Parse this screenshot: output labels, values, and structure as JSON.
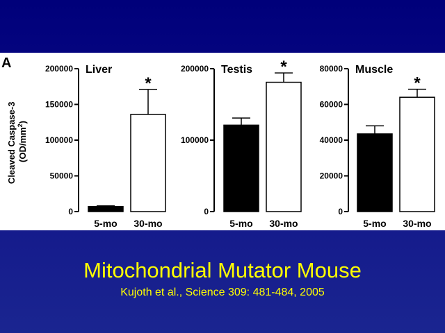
{
  "slide": {
    "title": "Mitochondrial Mutator Mouse",
    "citation": "Kujoth et al., Science 309: 481-484, 2005"
  },
  "figure": {
    "panel_label": "A",
    "ylabel_line1": "Cleaved Caspase-3",
    "ylabel_line2_prefix": "(OD/mm",
    "ylabel_line2_sup": "2",
    "ylabel_line2_suffix": ")"
  },
  "chart_data": [
    {
      "type": "bar",
      "title": "Liver",
      "categories": [
        "5-mo",
        "30-mo"
      ],
      "values": [
        7000,
        136000
      ],
      "errors": [
        1000,
        35000
      ],
      "fills": [
        "#000000",
        "#ffffff"
      ],
      "significance": [
        "",
        "*"
      ],
      "ylim": [
        0,
        200000
      ],
      "yticks": [
        0,
        50000,
        100000,
        150000,
        200000
      ],
      "ytick_labels": [
        "0",
        "50000",
        "100000",
        "150000",
        "200000"
      ],
      "xlabel": "",
      "ylabel": ""
    },
    {
      "type": "bar",
      "title": "Testis",
      "categories": [
        "5-mo",
        "30-mo"
      ],
      "values": [
        121000,
        181000
      ],
      "errors": [
        10000,
        13000
      ],
      "fills": [
        "#000000",
        "#ffffff"
      ],
      "significance": [
        "",
        "*"
      ],
      "ylim": [
        0,
        200000
      ],
      "yticks": [
        0,
        100000,
        200000
      ],
      "ytick_labels": [
        "0",
        "100000",
        "200000"
      ],
      "xlabel": "",
      "ylabel": ""
    },
    {
      "type": "bar",
      "title": "Muscle",
      "categories": [
        "5-mo",
        "30-mo"
      ],
      "values": [
        43500,
        64000
      ],
      "errors": [
        4500,
        4500
      ],
      "fills": [
        "#000000",
        "#ffffff"
      ],
      "significance": [
        "",
        "*"
      ],
      "ylim": [
        0,
        80000
      ],
      "yticks": [
        0,
        20000,
        40000,
        60000,
        80000
      ],
      "ytick_labels": [
        "0",
        "20000",
        "40000",
        "60000",
        "80000"
      ],
      "xlabel": "",
      "ylabel": ""
    }
  ]
}
